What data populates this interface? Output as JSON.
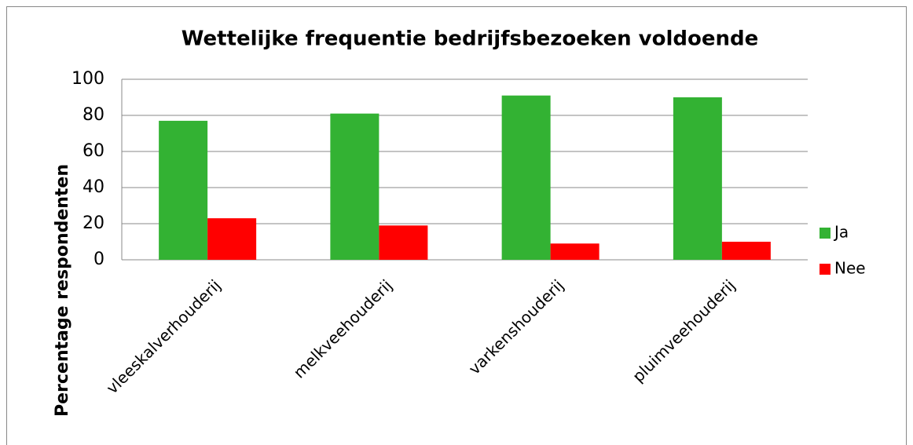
{
  "chart_data": {
    "type": "bar",
    "title": "Wettelijke frequentie bedrijfsbezoeken voldoende",
    "y_label": "Percentage respondenten",
    "categories": [
      "vleeskalverhouderij",
      "melkveehouderij",
      "varkenshouderij",
      "pluimveehouderij"
    ],
    "series": [
      {
        "name": "Ja",
        "color": "#33b233",
        "values": [
          77,
          81,
          91,
          90
        ]
      },
      {
        "name": "Nee",
        "color": "#ff0000",
        "values": [
          23,
          19,
          9,
          10
        ]
      }
    ],
    "ylim": [
      0,
      100
    ],
    "yticks": [
      0,
      20,
      40,
      60,
      80,
      100
    ],
    "grid": true,
    "legend": "right"
  }
}
